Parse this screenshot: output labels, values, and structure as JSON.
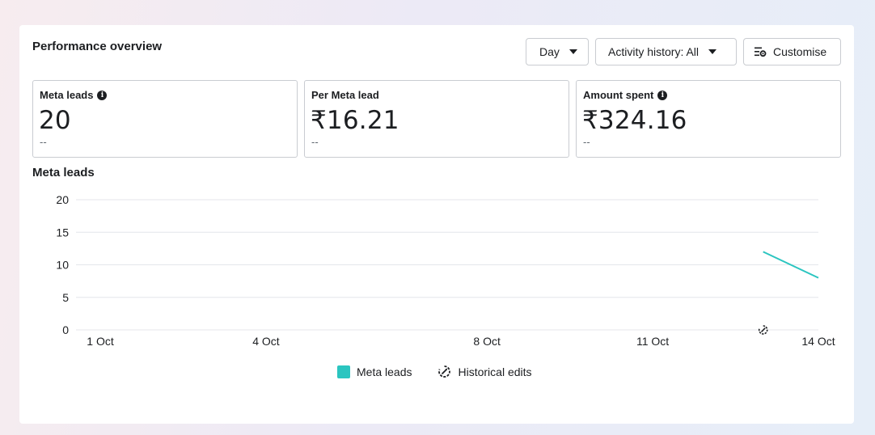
{
  "panel": {
    "title": "Performance overview"
  },
  "toolbar": {
    "day_label": "Day",
    "activity_label": "Activity history: All",
    "customise_label": "Customise"
  },
  "metrics": [
    {
      "label": "Meta leads",
      "value": "20",
      "sub": "--",
      "info": true
    },
    {
      "label": "Per Meta lead",
      "value": "₹16.21",
      "sub": "--",
      "info": false
    },
    {
      "label": "Amount spent",
      "value": "₹324.16",
      "sub": "--",
      "info": true
    }
  ],
  "chart_title": "Meta leads",
  "legend": {
    "series_label": "Meta leads",
    "edits_label": "Historical edits"
  },
  "colors": {
    "series": "#2bc5c0",
    "grid": "#e4e6eb"
  },
  "chart_data": {
    "type": "line",
    "title": "Meta leads",
    "x_ticks": [
      "1 Oct",
      "4 Oct",
      "8 Oct",
      "11 Oct",
      "14 Oct"
    ],
    "x_tick_days": [
      1,
      4,
      8,
      11,
      14
    ],
    "y_ticks": [
      0,
      5,
      10,
      15,
      20
    ],
    "ylim": [
      0,
      20
    ],
    "xlim": [
      1,
      14
    ],
    "series": [
      {
        "name": "Meta leads",
        "points": [
          {
            "x": 13,
            "y": 12
          },
          {
            "x": 14,
            "y": 8
          }
        ]
      }
    ],
    "historical_edits": [
      {
        "x": 13
      }
    ],
    "legend_position": "bottom",
    "grid": true
  }
}
